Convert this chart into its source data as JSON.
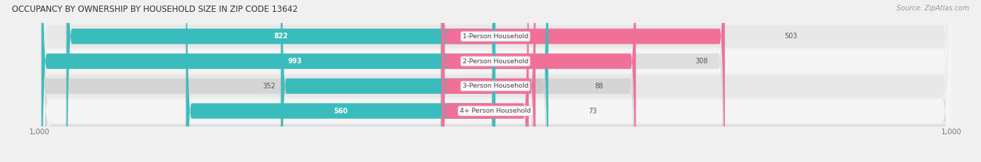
{
  "title": "OCCUPANCY BY OWNERSHIP BY HOUSEHOLD SIZE IN ZIP CODE 13642",
  "source": "Source: ZipAtlas.com",
  "categories": [
    "1-Person Household",
    "2-Person Household",
    "3-Person Household",
    "4+ Person Household"
  ],
  "owner_values": [
    822,
    993,
    352,
    560
  ],
  "renter_values": [
    503,
    308,
    88,
    73
  ],
  "owner_color": "#3bbcbc",
  "renter_color": "#f07098",
  "owner_color_light": "#7dd8d8",
  "renter_color_light": "#f8a0bc",
  "x_max": 1000,
  "bg_color": "#f0f0f0",
  "row_bg_dark": "#e8e8e8",
  "row_bg_light": "#f5f5f5",
  "title_fontsize": 8.5,
  "source_fontsize": 7,
  "label_fontsize": 7,
  "tick_fontsize": 7.5,
  "category_fontsize": 6.8
}
